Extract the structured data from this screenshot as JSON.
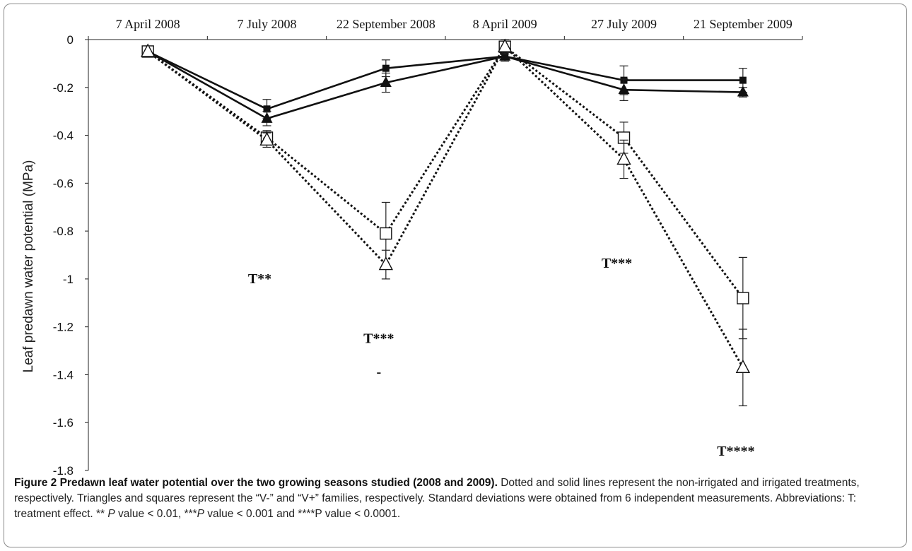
{
  "chart_data": {
    "type": "line",
    "title": "",
    "xlabel": "",
    "ylabel": "Leaf predawn water potential (MPa)",
    "ylim": [
      -1.8,
      0
    ],
    "yticks": [
      0,
      -0.2,
      -0.4,
      -0.6,
      -0.8,
      -1,
      -1.2,
      -1.4,
      -1.6,
      -1.8
    ],
    "ytick_labels": [
      "0",
      "-0.2",
      "-0.4",
      "-0.6",
      "-0.8",
      "-1",
      "-1.2",
      "-1.4",
      "-1.6",
      "-1.8"
    ],
    "x_axis_position": "top",
    "grid": false,
    "legend": "none",
    "categories": [
      "7 April 2008",
      "7 July 2008",
      "22 September 2008",
      "8 April 2009",
      "27 July 2009",
      "21 September 2009"
    ],
    "series": [
      {
        "line_style": "solid",
        "marker": "filled-square",
        "values": [
          -0.05,
          -0.29,
          -0.12,
          -0.07,
          -0.17,
          -0.17
        ],
        "error": [
          0,
          0.04,
          0.035,
          0.02,
          0.06,
          0.05
        ]
      },
      {
        "line_style": "solid",
        "marker": "filled-triangle",
        "values": [
          -0.05,
          -0.33,
          -0.18,
          -0.07,
          -0.21,
          -0.22
        ],
        "error": [
          0,
          0.03,
          0.04,
          0.02,
          0.045,
          0.02
        ]
      },
      {
        "line_style": "dotted",
        "marker": "open-square",
        "values": [
          -0.05,
          -0.41,
          -0.81,
          -0.03,
          -0.41,
          -1.08
        ],
        "error": [
          0,
          0.03,
          0.13,
          0.03,
          0.065,
          0.17
        ]
      },
      {
        "line_style": "dotted",
        "marker": "open-triangle",
        "values": [
          -0.05,
          -0.42,
          -0.94,
          -0.03,
          -0.5,
          -1.37
        ],
        "error": [
          0,
          0.03,
          0.06,
          0.03,
          0.08,
          0.16
        ]
      }
    ],
    "annotations": [
      {
        "text": "T**",
        "x": "7 July 2008",
        "y": -1.0
      },
      {
        "text": "T***",
        "x": "22 September 2008",
        "y": -1.25
      },
      {
        "text": "-",
        "x": "22 September 2008",
        "y": -1.39
      },
      {
        "text": "T***",
        "x": "27 July 2009",
        "y": -0.935
      },
      {
        "text": "T****",
        "x": "21 September 2009",
        "y": -1.72
      }
    ]
  },
  "caption": {
    "title": "Figure 2 Predawn leaf water potential over the two growing seasons studied (2008 and 2009).",
    "body_1": " Dotted and solid lines represent the non-irrigated and irrigated treatments, respectively. Triangles and squares represent the “V-” and “V+” families, respectively. Standard deviations were obtained from 6 independent measurements. Abbreviations: T: treatment effect. ** ",
    "p1": "P",
    "body_2": " value < 0.01, ***",
    "p2": "P",
    "body_3": " value < 0.001 and ****P value < 0.0001."
  },
  "colors": {
    "ink": "#111111",
    "axis": "#222222"
  }
}
